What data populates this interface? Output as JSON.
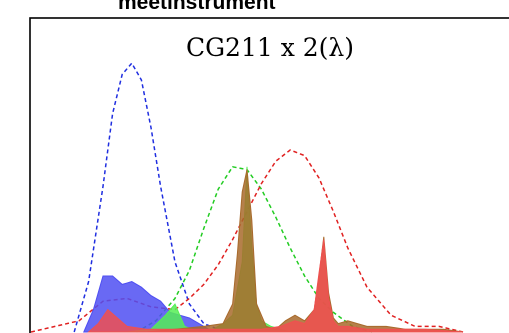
{
  "header": {
    "text": "meetinstrument"
  },
  "chart_data": {
    "type": "area",
    "title": "CG211 x 2(λ)",
    "xlabel": "",
    "ylabel": "",
    "xlim": [
      0,
      100
    ],
    "ylim": [
      0,
      1
    ],
    "grid": false,
    "series": [
      {
        "style": "dashed",
        "color": "#1f2ee0",
        "x": [
          9,
          12,
          15,
          17,
          19,
          21,
          23,
          25,
          27,
          30,
          33,
          36,
          39,
          42
        ],
        "values": [
          0.0,
          0.18,
          0.52,
          0.78,
          0.92,
          0.96,
          0.9,
          0.73,
          0.52,
          0.25,
          0.1,
          0.03,
          0.01,
          0.0
        ]
      },
      {
        "style": "dashed",
        "color": "#22cc22",
        "x": [
          22,
          26,
          30,
          33,
          36,
          39,
          42,
          45,
          48,
          51,
          54,
          57,
          60,
          63,
          67,
          71
        ],
        "values": [
          0.0,
          0.04,
          0.12,
          0.22,
          0.37,
          0.51,
          0.59,
          0.58,
          0.51,
          0.41,
          0.3,
          0.2,
          0.12,
          0.07,
          0.02,
          0.0
        ]
      },
      {
        "style": "dashed",
        "color": "#e02020",
        "x": [
          0,
          5,
          10,
          15,
          20,
          25,
          30,
          33,
          36,
          39,
          42,
          45,
          48,
          51,
          54,
          57,
          60,
          63,
          66,
          70,
          75,
          80,
          85,
          90
        ],
        "values": [
          0.0,
          0.02,
          0.04,
          0.11,
          0.12,
          0.09,
          0.08,
          0.12,
          0.17,
          0.24,
          0.33,
          0.43,
          0.53,
          0.61,
          0.65,
          0.63,
          0.55,
          0.43,
          0.3,
          0.16,
          0.06,
          0.02,
          0.02,
          0.0
        ]
      },
      {
        "style": "filled",
        "color": "#4f4ff2",
        "x": [
          11,
          13,
          15,
          17,
          19,
          21,
          23,
          25,
          27,
          29,
          31,
          33,
          35,
          37,
          39
        ],
        "values": [
          0.0,
          0.08,
          0.2,
          0.2,
          0.17,
          0.18,
          0.16,
          0.13,
          0.11,
          0.07,
          0.06,
          0.05,
          0.03,
          0.01,
          0.0
        ]
      },
      {
        "style": "filled",
        "color": "#55ee55",
        "x": [
          20,
          25,
          28,
          30,
          32,
          35,
          38,
          40,
          42,
          44,
          45,
          46,
          47,
          48,
          50,
          52,
          54
        ],
        "values": [
          0.0,
          0.01,
          0.06,
          0.1,
          0.02,
          0.0,
          0.01,
          0.03,
          0.06,
          0.25,
          0.59,
          0.3,
          0.1,
          0.04,
          0.02,
          0.01,
          0.0
        ]
      },
      {
        "style": "filled",
        "color": "#a86a2c",
        "x": [
          24,
          30,
          36,
          40,
          42,
          43,
          44,
          45,
          46,
          47,
          49,
          51,
          53,
          55,
          57,
          59,
          60,
          61,
          62,
          63,
          64,
          66,
          68,
          70,
          74,
          78,
          82,
          86,
          90
        ],
        "values": [
          0.0,
          0.01,
          0.02,
          0.03,
          0.1,
          0.28,
          0.5,
          0.58,
          0.4,
          0.1,
          0.02,
          0.01,
          0.04,
          0.06,
          0.04,
          0.08,
          0.2,
          0.34,
          0.14,
          0.05,
          0.03,
          0.04,
          0.03,
          0.02,
          0.02,
          0.01,
          0.01,
          0.01,
          0.0
        ]
      },
      {
        "style": "filled",
        "color": "#f05050",
        "x": [
          12,
          14,
          16,
          18,
          20,
          24,
          28,
          34,
          40,
          48,
          52,
          55,
          57,
          59,
          60,
          61,
          62,
          63,
          64,
          66,
          70,
          76,
          82,
          90
        ],
        "values": [
          0.0,
          0.03,
          0.08,
          0.05,
          0.02,
          0.01,
          0.01,
          0.01,
          0.01,
          0.01,
          0.02,
          0.04,
          0.03,
          0.08,
          0.21,
          0.33,
          0.12,
          0.04,
          0.02,
          0.02,
          0.01,
          0.01,
          0.01,
          0.0
        ]
      }
    ]
  }
}
